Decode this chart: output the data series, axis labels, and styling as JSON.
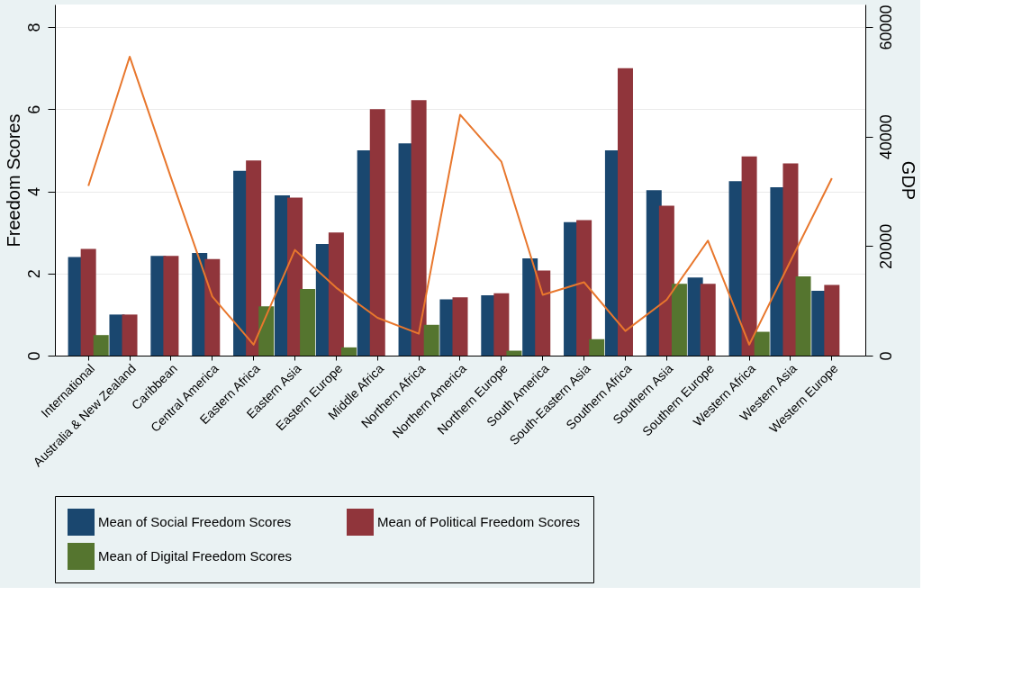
{
  "chart_data": {
    "type": "bar",
    "ylabel": "Freedom Scores",
    "y2label": "GDP",
    "categories": [
      "International",
      "Australia & New Zealand",
      "Caribbean",
      "Central America",
      "Eastern Africa",
      "Eastern Asia",
      "Eastern Europe",
      "Middle Africa",
      "Northern Africa",
      "Northern America",
      "Northern Europe",
      "South America",
      "South-Eastern Asia",
      "Southern Africa",
      "Southern Asia",
      "Southern Europe",
      "Western Africa",
      "Western Asia",
      "Western Europe"
    ],
    "series": [
      {
        "name": "Mean of Social Freedom Scores",
        "color": "#1a476f",
        "values": [
          2.4,
          1.0,
          2.43,
          2.5,
          4.5,
          3.9,
          2.72,
          5.0,
          5.17,
          1.37,
          1.47,
          2.37,
          3.25,
          5.0,
          4.03,
          1.9,
          4.25,
          4.1,
          1.58
        ]
      },
      {
        "name": "Mean of Political Freedom Scores",
        "color": "#90353b",
        "values": [
          2.6,
          1.0,
          2.43,
          2.35,
          4.75,
          3.85,
          3.0,
          6.0,
          6.22,
          1.42,
          1.52,
          2.07,
          3.3,
          7.0,
          3.65,
          1.75,
          4.85,
          4.68,
          1.72
        ]
      },
      {
        "name": "Mean of Digital Freedom Scores",
        "color": "#55752f",
        "values": [
          0.5,
          null,
          null,
          null,
          1.2,
          1.62,
          0.2,
          null,
          0.75,
          null,
          0.12,
          null,
          0.4,
          null,
          1.75,
          null,
          0.58,
          1.93,
          null
        ]
      },
      {
        "type": "line",
        "axis": "y2",
        "color": "#e8772d",
        "values": [
          31000,
          54600,
          32500,
          10800,
          2000,
          19300,
          12400,
          6900,
          4000,
          44000,
          35400,
          11100,
          13400,
          4500,
          10200,
          21000,
          2000,
          17300,
          32400
        ]
      }
    ],
    "ylim": [
      0,
      8.55
    ],
    "yticks": [
      0,
      2,
      4,
      6,
      8
    ],
    "y2lim": [
      0,
      64125
    ],
    "y2ticks": [
      0,
      20000,
      40000,
      60000
    ],
    "grid": "y",
    "legend": "bottom"
  }
}
